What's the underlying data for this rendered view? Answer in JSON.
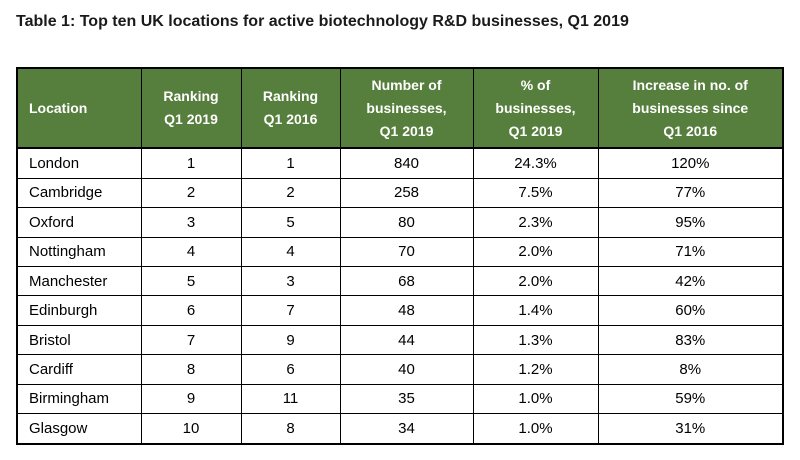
{
  "page": {
    "title": "Table 1: Top ten UK locations for active biotechnology R&D businesses, Q1 2019"
  },
  "colors": {
    "header_bg": "#567e3c",
    "header_text": "#ffffff",
    "body_text": "#000000",
    "border": "#000000",
    "row_bg": "#ffffff"
  },
  "header": {
    "labels": [
      "Location",
      "Ranking\nQ1 2019",
      "Ranking\nQ1 2016",
      "Number of\nbusinesses,\nQ1 2019",
      "% of\nbusinesses,\nQ1 2019",
      "Increase in no. of\nbusinesses since\nQ1 2016"
    ]
  },
  "chart_data": {
    "type": "table",
    "title": "Table 1: Top ten UK locations for active biotechnology R&D businesses, Q1 2019",
    "columns": [
      "Location",
      "Ranking Q1 2019",
      "Ranking Q1 2016",
      "Number of businesses, Q1 2019",
      "% of businesses, Q1 2019",
      "Increase in no. of businesses since Q1 2016"
    ],
    "rows": [
      [
        "London",
        "1",
        "1",
        "840",
        "24.3%",
        "120%"
      ],
      [
        "Cambridge",
        "2",
        "2",
        "258",
        "7.5%",
        "77%"
      ],
      [
        "Oxford",
        "3",
        "5",
        "80",
        "2.3%",
        "95%"
      ],
      [
        "Nottingham",
        "4",
        "4",
        "70",
        "2.0%",
        "71%"
      ],
      [
        "Manchester",
        "5",
        "3",
        "68",
        "2.0%",
        "42%"
      ],
      [
        "Edinburgh",
        "6",
        "7",
        "48",
        "1.4%",
        "60%"
      ],
      [
        "Bristol",
        "7",
        "9",
        "44",
        "1.3%",
        "83%"
      ],
      [
        "Cardiff",
        "8",
        "6",
        "40",
        "1.2%",
        "8%"
      ],
      [
        "Birmingham",
        "9",
        "11",
        "35",
        "1.0%",
        "59%"
      ],
      [
        "Glasgow",
        "10",
        "8",
        "34",
        "1.0%",
        "31%"
      ]
    ]
  }
}
